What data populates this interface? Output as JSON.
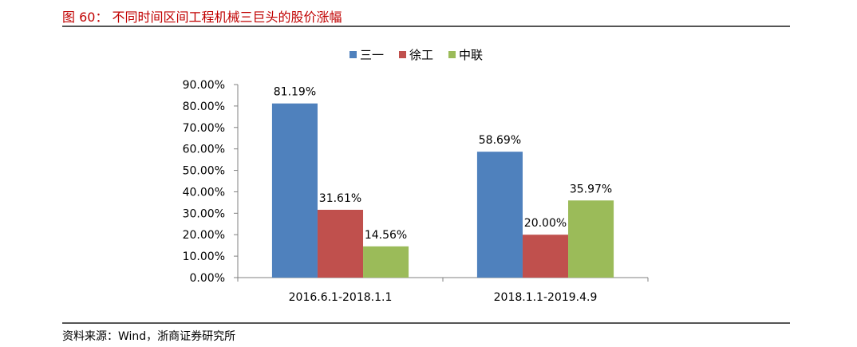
{
  "figure": {
    "title": "图 60：  不同时间区间工程机械三巨头的股价涨幅",
    "source": "资料来源：Wind，浙商证券研究所"
  },
  "chart_data": {
    "type": "bar",
    "title": "",
    "xlabel": "",
    "ylabel": "",
    "categories": [
      "2016.6.1-2018.1.1",
      "2018.1.1-2019.4.9"
    ],
    "series": [
      {
        "name": "三一",
        "values": [
          81.19,
          58.69
        ],
        "labels": [
          "81.19%",
          "58.69%"
        ],
        "color": "#4f81bd"
      },
      {
        "name": "徐工",
        "values": [
          31.61,
          20.0
        ],
        "labels": [
          "31.61%",
          "20.00%"
        ],
        "color": "#c0504d"
      },
      {
        "name": "中联",
        "values": [
          14.56,
          35.97
        ],
        "labels": [
          "14.56%",
          "35.97%"
        ],
        "color": "#9bbb59"
      }
    ],
    "ylim": [
      0,
      90
    ],
    "yticks": [
      0,
      10,
      20,
      30,
      40,
      50,
      60,
      70,
      80,
      90
    ],
    "ytick_labels": [
      "0.00%",
      "10.00%",
      "20.00%",
      "30.00%",
      "40.00%",
      "50.00%",
      "60.00%",
      "70.00%",
      "80.00%",
      "90.00%"
    ],
    "legend_position": "top-center",
    "grid": false
  }
}
